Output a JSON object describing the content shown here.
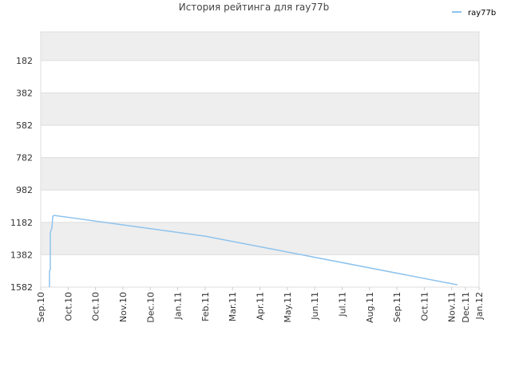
{
  "chart_data": {
    "type": "line",
    "title": "История рейтинга для ray77b",
    "x": [
      0.32,
      0.32,
      0.35,
      0.35,
      0.41,
      0.44,
      0.5,
      6.0,
      15.21
    ],
    "series": [
      {
        "name": "ray77b",
        "color": "#8ec3ee",
        "values": [
          1582,
          1484,
          1474,
          1247,
          1213,
          1144,
          1139,
          1267,
          1568
        ]
      }
    ],
    "xlim": [
      0,
      16
    ],
    "xticks": [
      {
        "value": 0,
        "label": "Sep.10"
      },
      {
        "value": 1,
        "label": "Oct.10"
      },
      {
        "value": 2,
        "label": "Oct.10"
      },
      {
        "value": 3,
        "label": "Nov.10"
      },
      {
        "value": 4,
        "label": "Dec.10"
      },
      {
        "value": 5,
        "label": "Jan.11"
      },
      {
        "value": 6,
        "label": "Feb.11"
      },
      {
        "value": 7,
        "label": "Mar.11"
      },
      {
        "value": 8,
        "label": "Apr.11"
      },
      {
        "value": 9,
        "label": "May.11"
      },
      {
        "value": 10,
        "label": "Jun.11"
      },
      {
        "value": 11,
        "label": "Jul.11"
      },
      {
        "value": 12,
        "label": "Aug.11"
      },
      {
        "value": 13,
        "label": "Sep.11"
      },
      {
        "value": 14,
        "label": "Oct.11"
      },
      {
        "value": 15,
        "label": "Nov.11"
      },
      {
        "value": 15.5,
        "label": "Dec.11"
      },
      {
        "value": 16,
        "label": "Jan.12"
      }
    ],
    "ylim": [
      1582,
      5
    ],
    "yticks": [
      182,
      382,
      582,
      782,
      982,
      1182,
      1382,
      1582
    ],
    "grid": true,
    "legend": "top-right"
  }
}
